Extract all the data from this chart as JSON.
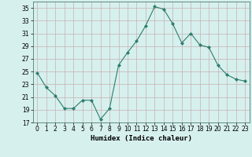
{
  "x": [
    0,
    1,
    2,
    3,
    4,
    5,
    6,
    7,
    8,
    9,
    10,
    11,
    12,
    13,
    14,
    15,
    16,
    17,
    18,
    19,
    20,
    21,
    22,
    23
  ],
  "y": [
    24.8,
    22.5,
    21.2,
    19.2,
    19.2,
    20.5,
    20.5,
    17.5,
    19.2,
    26.0,
    28.0,
    29.8,
    32.2,
    35.2,
    34.8,
    32.5,
    29.5,
    31.0,
    29.2,
    28.8,
    26.0,
    24.5,
    23.8,
    23.5
  ],
  "line_color": "#2e7d6e",
  "marker": "D",
  "markersize": 2,
  "bg_color": "#d6f0ee",
  "grid_color": "#c8b0b0",
  "xlabel": "Humidex (Indice chaleur)",
  "ylim": [
    17,
    36
  ],
  "xlim": [
    -0.5,
    23.5
  ],
  "yticks": [
    17,
    19,
    21,
    23,
    25,
    27,
    29,
    31,
    33,
    35
  ],
  "xticks": [
    0,
    1,
    2,
    3,
    4,
    5,
    6,
    7,
    8,
    9,
    10,
    11,
    12,
    13,
    14,
    15,
    16,
    17,
    18,
    19,
    20,
    21,
    22,
    23
  ],
  "label_fontsize": 6.5,
  "tick_fontsize": 5.5
}
